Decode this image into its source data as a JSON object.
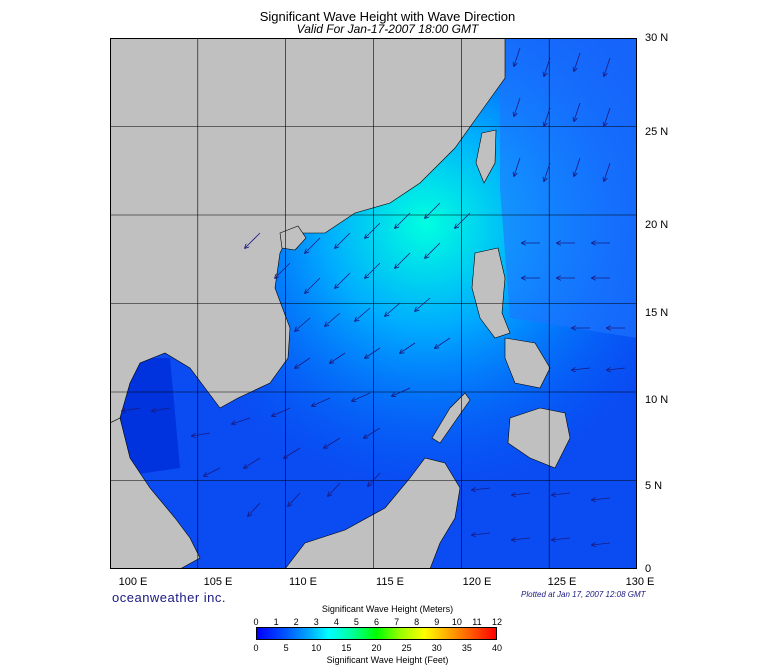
{
  "title": "Significant Wave Height with Wave Direction",
  "subtitle": "Valid For Jan-17-2007 18:00 GMT",
  "lat_labels": [
    "30 N",
    "25 N",
    "20 N",
    "15 N",
    "10 N",
    "5 N",
    "0"
  ],
  "lon_labels": [
    "100 E",
    "105 E",
    "110 E",
    "115 E",
    "120 E",
    "125 E",
    "130 E"
  ],
  "brand": "oceanweather inc.",
  "plotted": "Plotted at Jan 17, 2007 12:08 GMT",
  "colorbar": {
    "title_top": "Significant Wave Height (Meters)",
    "title_bottom": "Significant Wave Height (Feet)",
    "meters_ticks": [
      "0",
      "1",
      "2",
      "3",
      "4",
      "5",
      "6",
      "7",
      "8",
      "9",
      "10",
      "11",
      "12"
    ],
    "feet_ticks": [
      "0",
      "5",
      "10",
      "15",
      "20",
      "25",
      "30",
      "35",
      "40"
    ]
  },
  "colors": {
    "land": "#c0c0c0",
    "sea_deep": "#0000ff",
    "sea_mid": "#0055ff",
    "sea_high": "#00ffff"
  }
}
